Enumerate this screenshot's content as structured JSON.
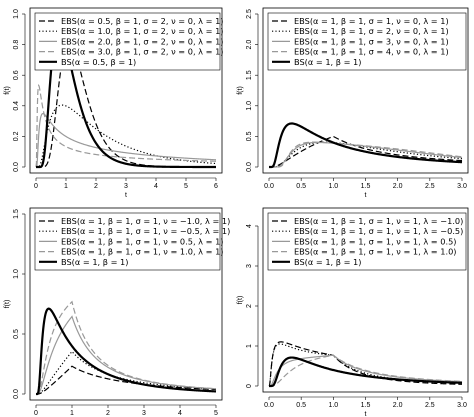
{
  "chart_data": [
    {
      "type": "line",
      "xlabel": "t",
      "ylabel": "f(t)",
      "xlim": [
        0,
        6
      ],
      "ylim": [
        0,
        1.0
      ],
      "xticks": [
        "0",
        "1",
        "2",
        "3",
        "4",
        "5",
        "6"
      ],
      "yticks": [
        "0.0",
        "0.2",
        "0.4",
        "0.6",
        "0.8",
        "1.0"
      ],
      "legend_position": "top-left",
      "series": [
        {
          "name": "EBS(α = 0.5, β = 1, σ = 2, ν = 0, λ = 1)",
          "style": "dashed",
          "color": "#000000",
          "width": 1.2,
          "family": "ebs",
          "alpha": 0.5,
          "sigma": 2,
          "nu": 0,
          "lambda": 1
        },
        {
          "name": "EBS(α = 1.0, β = 1, σ = 2, ν = 0, λ = 1)",
          "style": "dotted",
          "color": "#000000",
          "width": 1.2,
          "family": "ebs",
          "alpha": 1.0,
          "sigma": 2,
          "nu": 0,
          "lambda": 1
        },
        {
          "name": "EBS(α = 2.0, β = 1, σ = 2, ν = 0, λ = 1)",
          "style": "solid",
          "color": "#999999",
          "width": 1.2,
          "family": "ebs",
          "alpha": 2.0,
          "sigma": 2,
          "nu": 0,
          "lambda": 1
        },
        {
          "name": "EBS(α = 3.0, β = 1, σ = 2, ν = 0, λ = 1)",
          "style": "dashed",
          "color": "#999999",
          "width": 1.2,
          "family": "ebs",
          "alpha": 3.0,
          "sigma": 2,
          "nu": 0,
          "lambda": 1
        },
        {
          "name": "BS(α = 0.5, β = 1)",
          "style": "solid",
          "color": "#000000",
          "width": 2.2,
          "family": "bs",
          "alpha": 0.5
        }
      ]
    },
    {
      "type": "line",
      "xlabel": "t",
      "ylabel": "f(t)",
      "xlim": [
        0,
        3.0
      ],
      "ylim": [
        0,
        2.5
      ],
      "xticks": [
        "0.0",
        "0.5",
        "1.0",
        "1.5",
        "2.0",
        "2.5",
        "3.0"
      ],
      "yticks": [
        "0.0",
        "0.5",
        "1.0",
        "1.5",
        "2.0",
        "2.5"
      ],
      "legend_position": "top-left",
      "series": [
        {
          "name": "EBS(α = 1, β = 1, σ = 1, ν = 0, λ = 1)",
          "style": "dashed",
          "color": "#000000",
          "width": 1.2,
          "family": "ebs",
          "alpha": 1,
          "sigma": 1,
          "nu": 0,
          "lambda": 1
        },
        {
          "name": "EBS(α = 1, β = 1, σ = 2, ν = 0, λ = 1)",
          "style": "dotted",
          "color": "#000000",
          "width": 1.2,
          "family": "ebs",
          "alpha": 1,
          "sigma": 2,
          "nu": 0,
          "lambda": 1
        },
        {
          "name": "EBS(α = 1, β = 1, σ = 3, ν = 0, λ = 1)",
          "style": "solid",
          "color": "#999999",
          "width": 1.2,
          "family": "ebs",
          "alpha": 1,
          "sigma": 3,
          "nu": 0,
          "lambda": 1
        },
        {
          "name": "EBS(α = 1, β = 1, σ = 4, ν = 0, λ = 1)",
          "style": "dashed",
          "color": "#999999",
          "width": 1.2,
          "family": "ebs",
          "alpha": 1,
          "sigma": 4,
          "nu": 0,
          "lambda": 1
        },
        {
          "name": "BS(α = 1, β = 1)",
          "style": "solid",
          "color": "#000000",
          "width": 2.2,
          "family": "bs",
          "alpha": 1
        }
      ]
    },
    {
      "type": "line",
      "xlabel": "t",
      "ylabel": "f(t)",
      "xlim": [
        0,
        5
      ],
      "ylim": [
        0,
        1.5
      ],
      "xticks": [
        "0",
        "1",
        "2",
        "3",
        "4",
        "5"
      ],
      "yticks": [
        "0.0",
        "0.5",
        "1.0",
        "1.5"
      ],
      "legend_position": "top-left",
      "series": [
        {
          "name": "EBS(α = 1, β = 1, σ = 1, ν = −1.0, λ = 1)",
          "style": "dashed",
          "color": "#000000",
          "width": 1.2,
          "family": "ebs",
          "alpha": 1,
          "sigma": 1,
          "nu": -1.0,
          "lambda": 1
        },
        {
          "name": "EBS(α = 1, β = 1, σ = 1, ν = −0.5, λ = 1)",
          "style": "dotted",
          "color": "#000000",
          "width": 1.2,
          "family": "ebs",
          "alpha": 1,
          "sigma": 1,
          "nu": -0.5,
          "lambda": 1
        },
        {
          "name": "EBS(α = 1, β = 1, σ = 1, ν = 0.5, λ = 1)",
          "style": "solid",
          "color": "#999999",
          "width": 1.2,
          "family": "ebs",
          "alpha": 1,
          "sigma": 1,
          "nu": 0.5,
          "lambda": 1
        },
        {
          "name": "EBS(α = 1, β = 1, σ = 1, ν = 1.0, λ = 1)",
          "style": "dashed",
          "color": "#999999",
          "width": 1.2,
          "family": "ebs",
          "alpha": 1,
          "sigma": 1,
          "nu": 1.0,
          "lambda": 1
        },
        {
          "name": "BS(α = 1, β = 1)",
          "style": "solid",
          "color": "#000000",
          "width": 2.2,
          "family": "bs",
          "alpha": 1
        }
      ]
    },
    {
      "type": "line",
      "xlabel": "t",
      "ylabel": "f(t)",
      "xlim": [
        0,
        3.0
      ],
      "ylim": [
        0,
        4.3
      ],
      "xticks": [
        "0.0",
        "0.5",
        "1.0",
        "1.5",
        "2.0",
        "2.5",
        "3.0"
      ],
      "yticks": [
        "0",
        "1",
        "2",
        "3",
        "4"
      ],
      "legend_position": "top-left",
      "series": [
        {
          "name": "EBS(α = 1, β = 1, σ = 1, ν = 1, λ = −1.0)",
          "style": "dashed",
          "color": "#000000",
          "width": 1.2,
          "family": "ebs",
          "alpha": 1,
          "sigma": 1,
          "nu": 1,
          "lambda": -1.0
        },
        {
          "name": "EBS(α = 1, β = 1, σ = 1, ν = 1, λ = −0.5)",
          "style": "dotted",
          "color": "#000000",
          "width": 1.2,
          "family": "ebs",
          "alpha": 1,
          "sigma": 1,
          "nu": 1,
          "lambda": -0.5
        },
        {
          "name": "EBS(α = 1, β = 1, σ = 1, ν = 1, λ = 0.5)",
          "style": "solid",
          "color": "#999999",
          "width": 1.2,
          "family": "ebs",
          "alpha": 1,
          "sigma": 1,
          "nu": 1,
          "lambda": 0.5
        },
        {
          "name": "EBS(α = 1, β = 1, σ = 1, ν = 1, λ = 1.0)",
          "style": "dashed",
          "color": "#999999",
          "width": 1.2,
          "family": "ebs",
          "alpha": 1,
          "sigma": 1,
          "nu": 1,
          "lambda": 1.0
        },
        {
          "name": "BS(α = 1, β = 1)",
          "style": "solid",
          "color": "#000000",
          "width": 2.2,
          "family": "bs",
          "alpha": 1
        }
      ]
    }
  ]
}
